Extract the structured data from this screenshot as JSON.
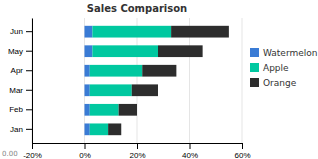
{
  "chart_data": {
    "type": "bar",
    "orientation": "horizontal",
    "stacked": true,
    "title": "Sales Comparison",
    "categories": [
      "Jan",
      "Feb",
      "Mar",
      "Apr",
      "May",
      "Jun"
    ],
    "series": [
      {
        "name": "Watermelon",
        "color": "#3A7BD5",
        "values": [
          2,
          2,
          2,
          2,
          3,
          3
        ]
      },
      {
        "name": "Apple",
        "color": "#00C8A0",
        "values": [
          7,
          11,
          16,
          20,
          25,
          30
        ]
      },
      {
        "name": "Orange",
        "color": "#2d2d2d",
        "values": [
          5,
          7,
          10,
          13,
          17,
          22
        ]
      }
    ],
    "xlim": [
      -20,
      60
    ],
    "xticks": [
      {
        "value": -20,
        "label": "-20%"
      },
      {
        "value": 0,
        "label": "0%"
      },
      {
        "value": 20,
        "label": "20%"
      },
      {
        "value": 40,
        "label": "40%"
      },
      {
        "value": 60,
        "label": "60%"
      }
    ],
    "grid": true,
    "annotations": [
      "0.00"
    ]
  }
}
